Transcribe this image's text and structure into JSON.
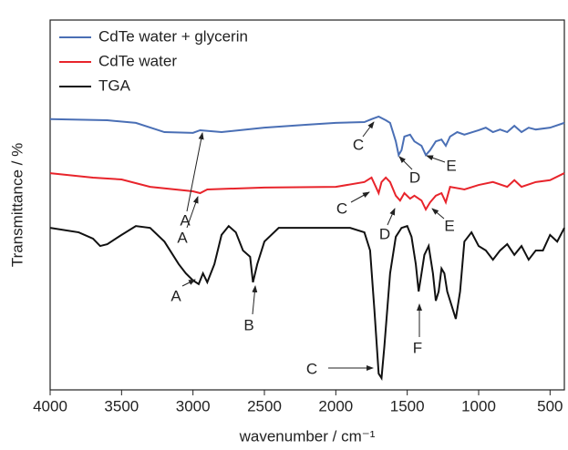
{
  "chart_data": {
    "type": "line",
    "xlabel": "wavenumber / cm⁻¹",
    "ylabel": "Transmittance / %",
    "xlim": [
      4000,
      400
    ],
    "ylim": [
      0,
      100
    ],
    "xticks": [
      4000,
      3500,
      3000,
      2500,
      2000,
      1500,
      1000,
      500
    ],
    "legend": "upper left",
    "series": [
      {
        "name": "CdTe water + glycerin",
        "color": "#4a6fb5",
        "x": [
          4000,
          3600,
          3400,
          3200,
          3000,
          2950,
          2800,
          2500,
          2200,
          2000,
          1800,
          1750,
          1700,
          1650,
          1620,
          1580,
          1560,
          1540,
          1520,
          1480,
          1450,
          1400,
          1370,
          1340,
          1300,
          1260,
          1230,
          1200,
          1150,
          1100,
          1000,
          950,
          900,
          850,
          800,
          750,
          700,
          650,
          600,
          500,
          400
        ],
        "values": [
          73.2,
          72.9,
          72.2,
          69.7,
          69.5,
          70.2,
          69.7,
          70.9,
          71.7,
          72.2,
          72.4,
          73.2,
          73.9,
          72.9,
          72.2,
          67.2,
          63.5,
          64.8,
          68.5,
          69.0,
          67.2,
          66.0,
          63.5,
          64.8,
          67.2,
          67.7,
          66.0,
          68.5,
          69.7,
          69.0,
          70.2,
          70.9,
          69.7,
          70.4,
          69.7,
          71.4,
          69.7,
          70.9,
          70.4,
          70.9,
          72.2
        ]
      },
      {
        "name": "CdTe water",
        "color": "#e8242b",
        "x": [
          4000,
          3700,
          3500,
          3300,
          3000,
          2950,
          2900,
          2500,
          2000,
          1800,
          1750,
          1720,
          1700,
          1680,
          1650,
          1620,
          1580,
          1550,
          1520,
          1480,
          1450,
          1400,
          1370,
          1340,
          1300,
          1260,
          1230,
          1200,
          1100,
          1000,
          900,
          800,
          750,
          700,
          600,
          500,
          400
        ],
        "values": [
          58.6,
          57.4,
          56.9,
          54.9,
          53.7,
          53.2,
          54.2,
          54.7,
          54.9,
          56.2,
          57.4,
          54.9,
          53.2,
          56.2,
          57.4,
          56.2,
          52.5,
          51.2,
          53.2,
          51.7,
          52.5,
          51.2,
          48.8,
          50.7,
          52.5,
          53.2,
          50.7,
          54.9,
          54.2,
          55.4,
          56.2,
          54.9,
          56.7,
          54.9,
          56.2,
          56.7,
          58.6
        ]
      },
      {
        "name": "TGA",
        "color": "#111111",
        "x": [
          4000,
          3800,
          3700,
          3650,
          3600,
          3500,
          3400,
          3300,
          3200,
          3100,
          3050,
          3000,
          2960,
          2930,
          2900,
          2850,
          2800,
          2750,
          2700,
          2650,
          2600,
          2580,
          2550,
          2500,
          2400,
          2000,
          1900,
          1800,
          1760,
          1730,
          1700,
          1680,
          1660,
          1620,
          1580,
          1540,
          1500,
          1470,
          1440,
          1420,
          1400,
          1380,
          1350,
          1320,
          1300,
          1280,
          1260,
          1240,
          1220,
          1190,
          1160,
          1130,
          1100,
          1050,
          1000,
          950,
          900,
          850,
          800,
          750,
          700,
          650,
          600,
          550,
          500,
          450,
          400
        ],
        "values": [
          43.8,
          42.6,
          40.9,
          38.9,
          39.4,
          41.9,
          44.3,
          43.8,
          40.1,
          34.0,
          31.5,
          29.6,
          28.6,
          31.5,
          29.1,
          34.0,
          41.9,
          44.3,
          42.6,
          37.7,
          36.0,
          29.1,
          34.0,
          40.1,
          43.8,
          43.8,
          43.8,
          42.6,
          37.7,
          21.7,
          4.4,
          3.2,
          11.8,
          31.5,
          41.4,
          43.8,
          44.3,
          41.4,
          34.0,
          26.6,
          31.5,
          36.5,
          38.9,
          31.5,
          24.1,
          26.6,
          32.8,
          31.5,
          26.6,
          22.9,
          19.2,
          26.6,
          40.1,
          42.6,
          38.9,
          37.7,
          35.2,
          37.7,
          39.4,
          36.5,
          38.9,
          35.2,
          37.7,
          37.7,
          41.9,
          40.1,
          43.8
        ]
      }
    ],
    "annotations": [
      {
        "text": "A"
      },
      {
        "text": "C"
      },
      {
        "text": "D"
      },
      {
        "text": "E"
      },
      {
        "text": "A"
      },
      {
        "text": "C"
      },
      {
        "text": "D"
      },
      {
        "text": "E"
      },
      {
        "text": "A"
      },
      {
        "text": "B"
      },
      {
        "text": "C"
      },
      {
        "text": "F"
      }
    ]
  }
}
